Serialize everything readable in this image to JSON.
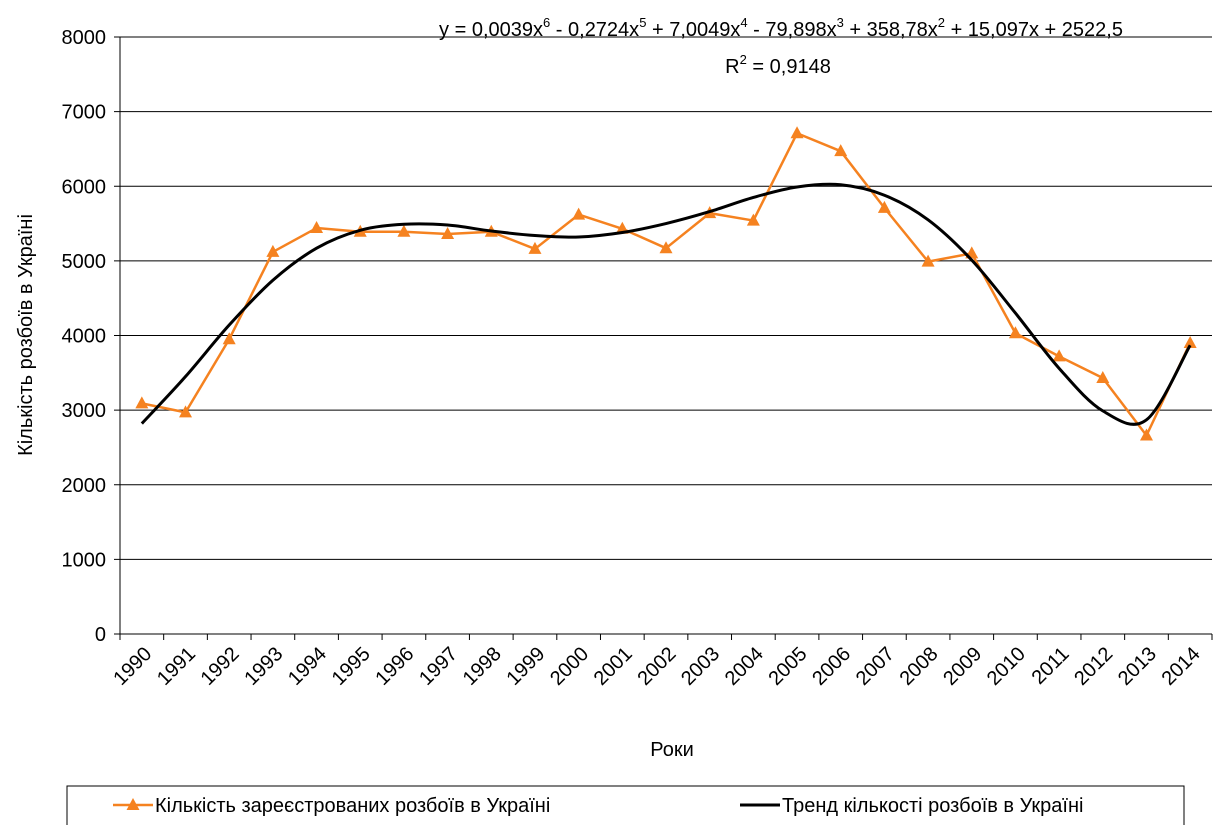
{
  "chart_data": {
    "type": "line",
    "x_label": "Роки",
    "y_label": "Кількість розбоїв в Україні",
    "equation": [
      "y = 0,0039x",
      "6",
      " - 0,2724x",
      "5",
      " + 7,0049x",
      "4",
      " - 79,898x",
      "3",
      " + 358,78x",
      "2",
      " + 15,097x + 2522,5"
    ],
    "r_squared": [
      "R",
      "2",
      " = 0,9148"
    ],
    "categories": [
      "1990",
      "1991",
      "1992",
      "1993",
      "1994",
      "1995",
      "1996",
      "1997",
      "1998",
      "1999",
      "2000",
      "2001",
      "2002",
      "2003",
      "2004",
      "2005",
      "2006",
      "2007",
      "2008",
      "2009",
      "2010",
      "2011",
      "2012",
      "2013",
      "2014"
    ],
    "series": [
      {
        "name": "Кількість зареєстрованих розбоїв в Україні",
        "color": "#f58220",
        "marker": "triangle",
        "values": [
          3090,
          2970,
          3950,
          5120,
          5440,
          5390,
          5390,
          5360,
          5390,
          5160,
          5620,
          5430,
          5170,
          5640,
          5540,
          6710,
          6470,
          5710,
          4990,
          5100,
          4030,
          3720,
          3430,
          2660,
          3900
        ]
      },
      {
        "name": "Тренд кількості розбоїв в Україні",
        "color": "#000000",
        "smooth": true,
        "values": [
          2820,
          3450,
          4140,
          4740,
          5170,
          5410,
          5490,
          5480,
          5400,
          5340,
          5320,
          5380,
          5500,
          5660,
          5850,
          5990,
          6020,
          5880,
          5550,
          5010,
          4300,
          3560,
          2990,
          2870,
          3870
        ]
      }
    ],
    "ylim": [
      0,
      8000
    ],
    "yticks": [
      0,
      1000,
      2000,
      3000,
      4000,
      5000,
      6000,
      7000,
      8000
    ],
    "grid": true,
    "legend": "bottom"
  }
}
